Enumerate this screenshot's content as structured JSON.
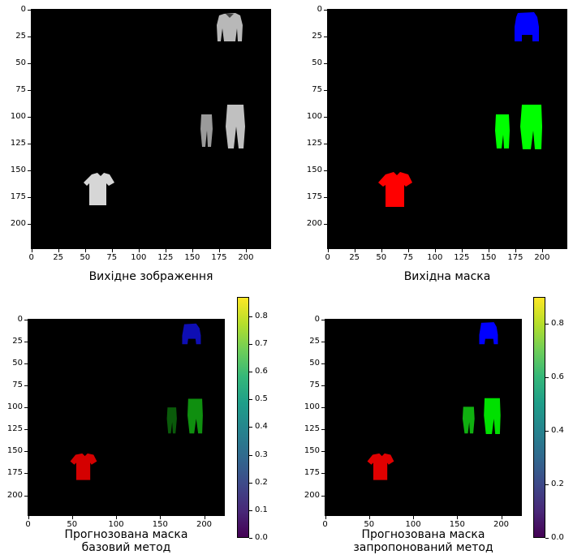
{
  "panels": [
    {
      "id": "input",
      "caption": "Вихідне зображення",
      "yticks": [
        "0",
        "25",
        "50",
        "75",
        "100",
        "125",
        "150",
        "175",
        "200"
      ],
      "xticks": [
        "0",
        "25",
        "50",
        "75",
        "100",
        "125",
        "150",
        "175",
        "200"
      ]
    },
    {
      "id": "gt",
      "caption": "Вихідна маска",
      "yticks": [
        "0",
        "25",
        "50",
        "75",
        "100",
        "125",
        "150",
        "175",
        "200"
      ],
      "xticks": [
        "0",
        "25",
        "50",
        "75",
        "100",
        "125",
        "150",
        "175",
        "200"
      ]
    },
    {
      "id": "pred_base",
      "caption_line1": "Прогнозована маска",
      "caption_line2": "базовий метод",
      "yticks": [
        "0",
        "25",
        "50",
        "75",
        "100",
        "125",
        "150",
        "175",
        "200"
      ],
      "xticks": [
        "0",
        "50",
        "100",
        "150",
        "200"
      ],
      "colorbar_ticks": [
        "0.0",
        "0.1",
        "0.2",
        "0.3",
        "0.4",
        "0.5",
        "0.6",
        "0.7",
        "0.8"
      ]
    },
    {
      "id": "pred_proposed",
      "caption_line1": "Прогнозована маска",
      "caption_line2": "запропонований метод",
      "yticks": [
        "0",
        "25",
        "50",
        "75",
        "100",
        "125",
        "150",
        "175",
        "200"
      ],
      "xticks": [
        "0",
        "50",
        "100",
        "150",
        "200"
      ],
      "colorbar_ticks": [
        "0.0",
        "0.2",
        "0.4",
        "0.6",
        "0.8"
      ]
    }
  ],
  "colors": {
    "shirt_mask": "#ff0000",
    "pants_mask": "#00ff00",
    "sweater_mask": "#0000ff",
    "garment_gray": "#cfcfcf",
    "background": "#000000"
  },
  "colorbar_range": {
    "base": [
      0,
      0.87
    ],
    "proposed": [
      0,
      0.9
    ]
  }
}
